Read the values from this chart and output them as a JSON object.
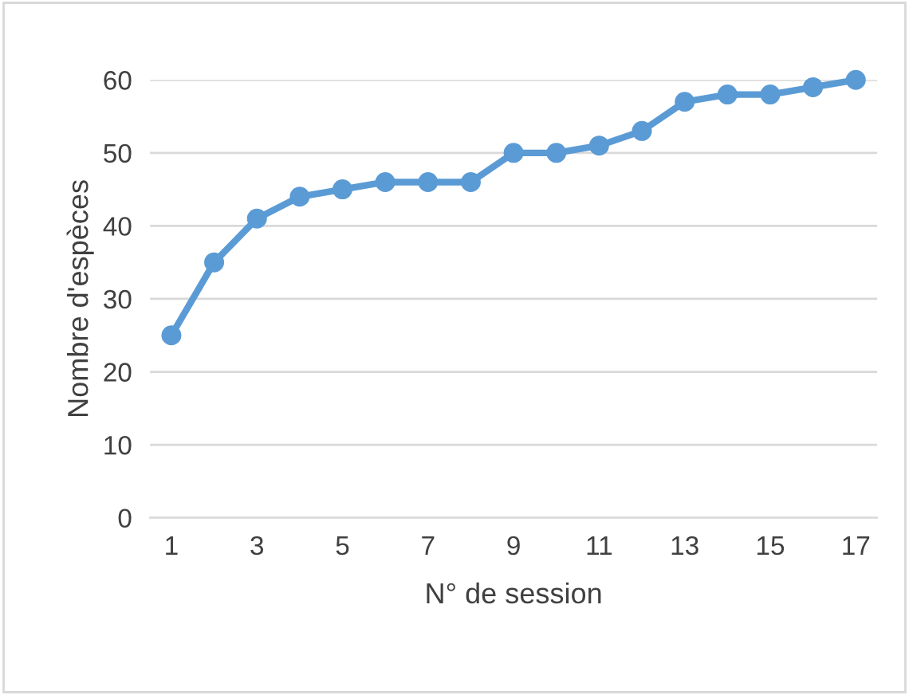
{
  "chart_data": {
    "type": "line",
    "xlabel": "N° de session",
    "ylabel": "Nombre d'espèces",
    "categories": [
      "1",
      null,
      "3",
      null,
      "5",
      null,
      "7",
      null,
      "9",
      null,
      "11",
      null,
      "13",
      null,
      "15",
      null,
      "17"
    ],
    "series": [
      {
        "color": "#5b9bd5",
        "values": [
          25,
          35,
          41,
          44,
          45,
          46,
          46,
          46,
          50,
          50,
          51,
          53,
          57,
          58,
          58,
          59,
          60
        ]
      }
    ],
    "ylim": [
      0,
      60
    ],
    "yticks": [
      0,
      10,
      20,
      30,
      40,
      50,
      60
    ],
    "grid": "y",
    "marker": "circle",
    "line_style": "solid"
  }
}
